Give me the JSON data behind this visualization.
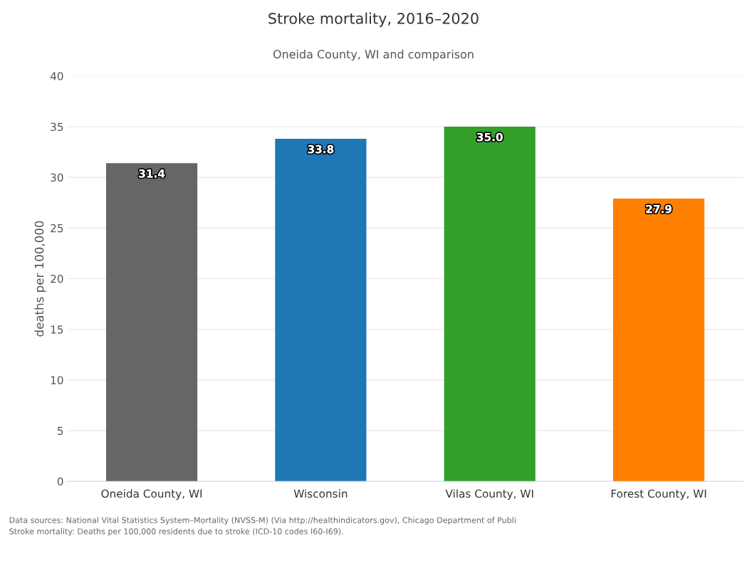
{
  "chart_data": {
    "type": "bar",
    "title": "Stroke mortality, 2016–2020",
    "subtitle": "Oneida County, WI and comparison",
    "ylabel": "deaths per 100,000",
    "categories": [
      "Oneida County, WI",
      "Wisconsin",
      "Vilas County, WI",
      "Forest County, WI"
    ],
    "values": [
      31.4,
      33.8,
      35.0,
      27.9
    ],
    "colors": [
      "#666666",
      "#1f77b4",
      "#33a02c",
      "#ff7f00"
    ],
    "value_labels": [
      "31.4",
      "33.8",
      "35.0",
      "27.9"
    ],
    "ylim": [
      0,
      40
    ],
    "yticks": [
      0,
      5,
      10,
      15,
      20,
      25,
      30,
      35,
      40
    ],
    "grid": "y",
    "legend": false,
    "annotations": [
      "Data sources: National Vital Statistics System–Mortality (NVSS-M) (Via http://healthindicators.gov), Chicago Department of Publi",
      "Stroke mortality: Deaths per 100,000 residents due to stroke (ICD-10 codes I60-I69)."
    ]
  }
}
